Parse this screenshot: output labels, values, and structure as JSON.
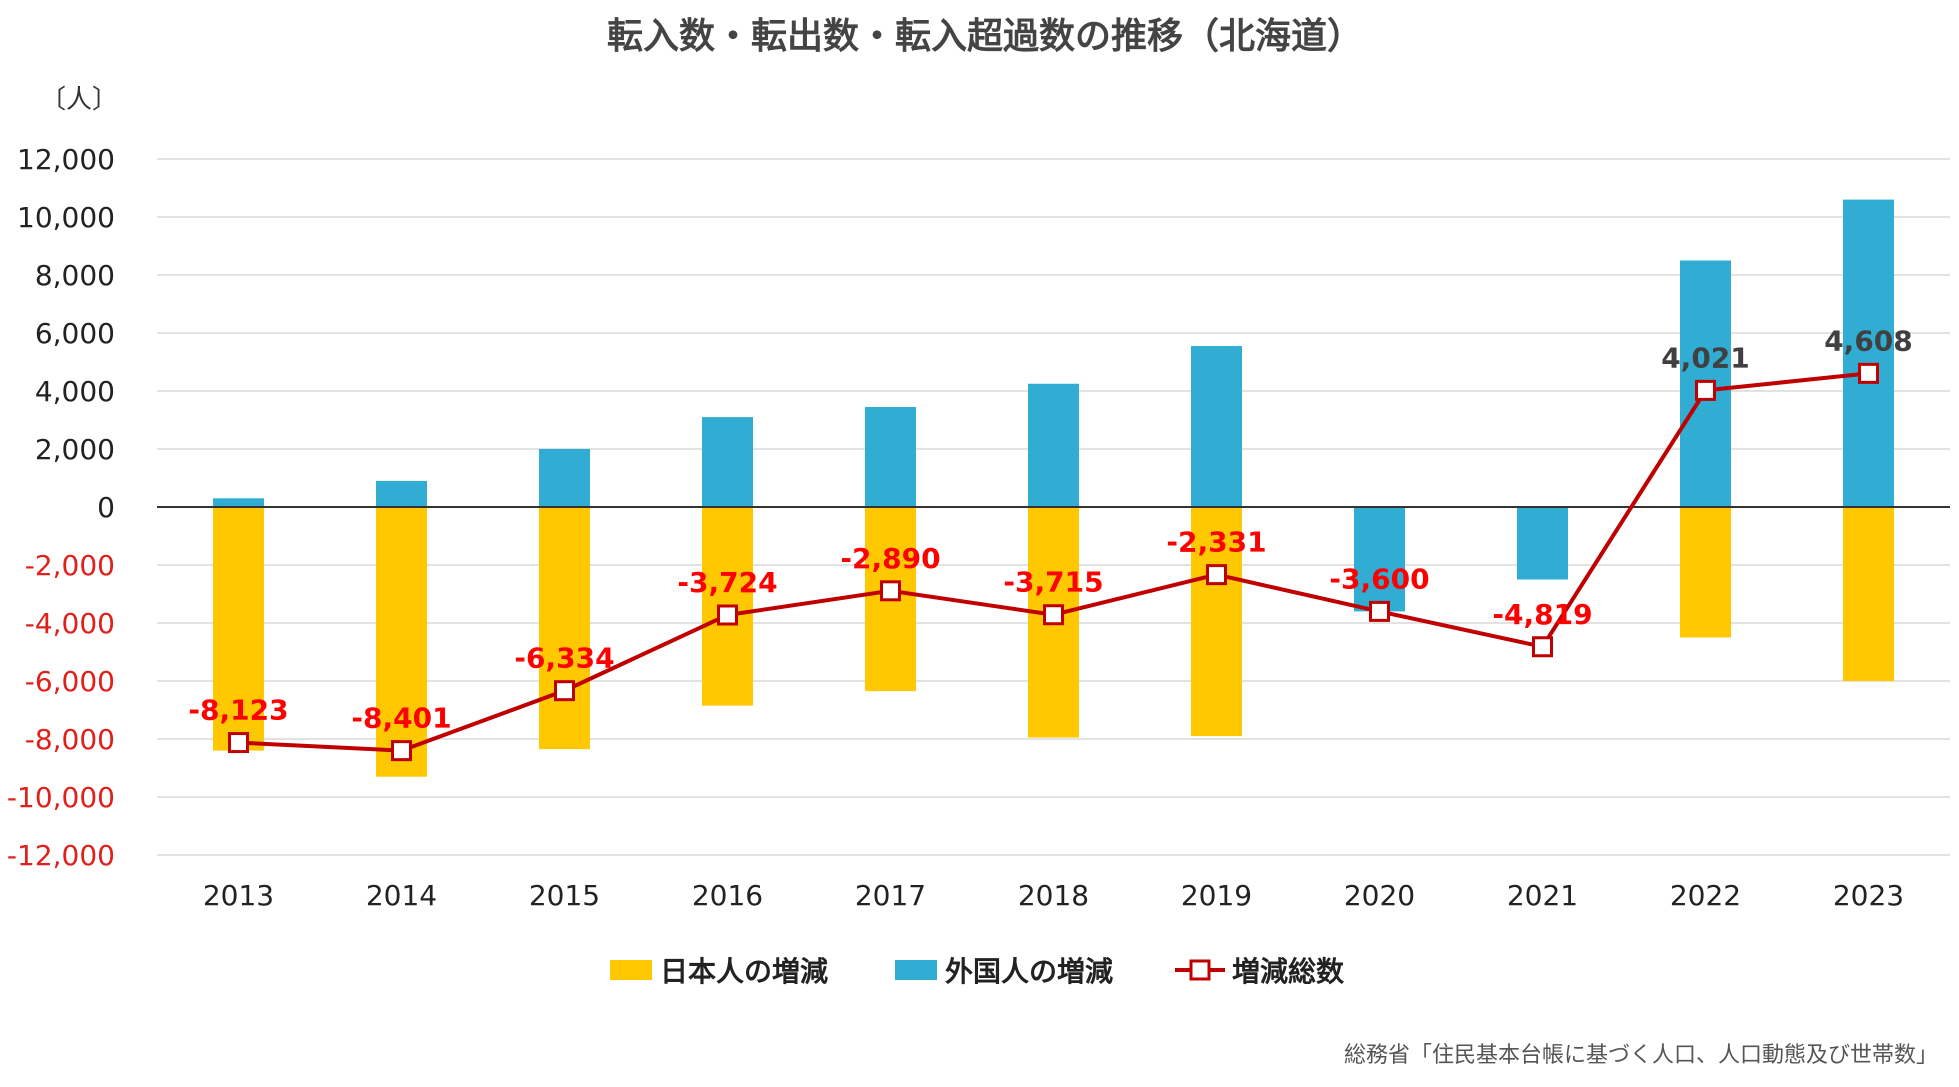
{
  "chart_data": {
    "type": "bar",
    "title": "転入数・転出数・転入超過数の推移（北海道）",
    "unit_label": "〔人〕",
    "categories": [
      "2013",
      "2014",
      "2015",
      "2016",
      "2017",
      "2018",
      "2019",
      "2020",
      "2021",
      "2022",
      "2023"
    ],
    "ylim": [
      -12000,
      12000
    ],
    "yticks": [
      12000,
      10000,
      8000,
      6000,
      4000,
      2000,
      0,
      -2000,
      -4000,
      -6000,
      -8000,
      -10000,
      -12000
    ],
    "ytick_labels": [
      "12,000",
      "10,000",
      "8,000",
      "6,000",
      "4,000",
      "2,000",
      "0",
      "-2,000",
      "-4,000",
      "-6,000",
      "-8,000",
      "-10,000",
      "-12,000"
    ],
    "grid": true,
    "legend_position": "bottom",
    "series": [
      {
        "name": "日本人の増減",
        "kind": "bar",
        "color": "#ffc800",
        "values": [
          -8400,
          -9300,
          -8350,
          -6850,
          -6350,
          -7950,
          -7900,
          0,
          -2300,
          -4500,
          -6000
        ]
      },
      {
        "name": "外国人の増減",
        "kind": "bar",
        "color": "#31acd3",
        "values": [
          300,
          900,
          2000,
          3100,
          3450,
          4250,
          5550,
          -3600,
          -2500,
          8500,
          10600
        ]
      },
      {
        "name": "増減総数",
        "kind": "line",
        "color": "#c00000",
        "values": [
          -8123,
          -8401,
          -6334,
          -3724,
          -2890,
          -3715,
          -2331,
          -3600,
          -4819,
          4021,
          4608
        ],
        "labels": [
          "-8,123",
          "-8,401",
          "-6,334",
          "-3,724",
          "-2,890",
          "-3,715",
          "-2,331",
          "-3,600",
          "-4,819",
          "4,021",
          "4,608"
        ]
      }
    ],
    "label_colors": {
      "negative": "#ff0000",
      "positive": "#404040"
    },
    "source": "総務省「住民基本台帳に基づく人口、人口動態及び世帯数」"
  }
}
